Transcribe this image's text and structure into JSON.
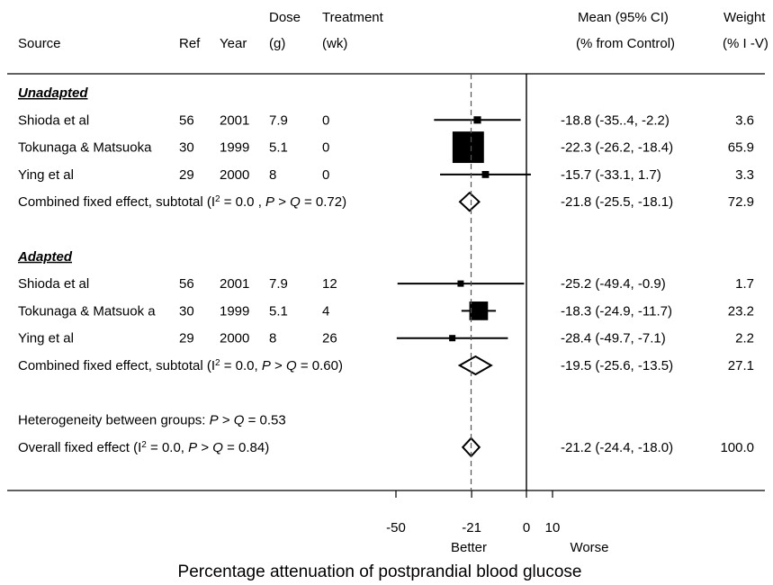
{
  "chart_data": {
    "type": "forest",
    "title": "",
    "xlabel": "Percentage attenuation of postprandial blood glucose",
    "direction_labels": {
      "left": "Better",
      "right": "Worse"
    },
    "x_ticks": [
      "-50",
      "-21",
      "0",
      "10"
    ],
    "x_tick_values": [
      -50,
      -21,
      0,
      10
    ],
    "xlim": [
      -60,
      12
    ],
    "reference_line": {
      "x": 0,
      "style": "solid"
    },
    "pooled_line": {
      "x": -21.2,
      "style": "dashed"
    },
    "headers": {
      "source": "Source",
      "ref": "Ref",
      "year": "Year",
      "dose_top": "Dose",
      "dose_bottom": "(g)",
      "treatment_top": "Treatment",
      "treatment_bottom": "(wk)",
      "mean_top": "Mean (95% CI)",
      "mean_bottom": "(% from Control)",
      "weight_top": "Weight",
      "weight_bottom": "(% I -V)"
    },
    "rows": [
      {
        "kind": "group",
        "label": "Unadapted"
      },
      {
        "kind": "study",
        "source": "Shioda et al",
        "ref": "56",
        "year": "2001",
        "dose": "7.9",
        "treatment": "0",
        "mean": -18.8,
        "lo": -35.4,
        "hi": -2.2,
        "ci_text": "-18.8  (-35..4,   -2.2)",
        "weight": 3.6,
        "weight_text": "3.6"
      },
      {
        "kind": "study",
        "source": "Tokunaga & Matsuoka",
        "ref": "30",
        "year": "1999",
        "dose": "5.1",
        "treatment": "0",
        "mean": -22.3,
        "lo": -26.2,
        "hi": -18.4,
        "ci_text": "-22.3  (-26.2, -18.4)",
        "weight": 65.9,
        "weight_text": "65.9"
      },
      {
        "kind": "study",
        "source": "Ying et al",
        "ref": "29",
        "year": "2000",
        "dose": "8",
        "treatment": "0",
        "mean": -15.7,
        "lo": -33.1,
        "hi": 1.7,
        "ci_text": "-15.7  (-33.1,    1.7)",
        "weight": 3.3,
        "weight_text": "3.3"
      },
      {
        "kind": "pooled",
        "prefix": "Combined fixed effect, subtotal  (I",
        "stat": "  = 0.0 , ",
        "p": "P",
        "gtq": " > ",
        "q": "Q",
        "pval": " = 0.72)",
        "mean": -21.8,
        "lo": -25.5,
        "hi": -18.1,
        "ci_text": "-21.8  (-25.5, -18.1)",
        "weight": 72.9,
        "weight_text": "72.9"
      },
      {
        "kind": "spacer"
      },
      {
        "kind": "group",
        "label": "Adapted"
      },
      {
        "kind": "study",
        "source": "Shioda et al",
        "ref": "56",
        "year": "2001",
        "dose": "7.9",
        "treatment": "12",
        "mean": -25.2,
        "lo": -49.4,
        "hi": -0.9,
        "ci_text": "-25.2  (-49.4,   -0.9)",
        "weight": 1.7,
        "weight_text": "1.7"
      },
      {
        "kind": "study",
        "source": "Tokunaga & Matsuok a",
        "ref": "30",
        "year": "1999",
        "dose": "5.1",
        "treatment": "4",
        "mean": -18.3,
        "lo": -24.9,
        "hi": -11.7,
        "ci_text": "-18.3  (-24.9, -11.7)",
        "weight": 23.2,
        "weight_text": "23.2"
      },
      {
        "kind": "study",
        "source": "Ying et al",
        "ref": "29",
        "year": "2000",
        "dose": "8",
        "treatment": "26",
        "mean": -28.4,
        "lo": -49.7,
        "hi": -7.1,
        "ci_text": "-28.4  (-49.7,   -7.1)",
        "weight": 2.2,
        "weight_text": "2.2"
      },
      {
        "kind": "pooled",
        "prefix": "Combined fixed effect, subtotal  (I",
        "stat": "  = 0.0, ",
        "p": "P",
        "gtq": " > ",
        "q": "Q",
        "pval": " = 0.60)",
        "mean": -19.5,
        "lo": -25.6,
        "hi": -13.5,
        "ci_text": "-19.5  (-25.6, -13.5)",
        "weight": 27.1,
        "weight_text": "27.1"
      },
      {
        "kind": "spacer"
      },
      {
        "kind": "note",
        "text_pre": "Heterogeneity between groups: ",
        "p": "P",
        "gtq": " > ",
        "q": "Q",
        "text_post": " = 0.53"
      },
      {
        "kind": "pooled",
        "prefix": "Overall  fixed effect (I",
        "stat": " = 0.0, ",
        "p": "P",
        "gtq": " > ",
        "q": "Q",
        "pval": " = 0.84)",
        "mean": -21.2,
        "lo": -24.4,
        "hi": -18.0,
        "ci_text": "-21.2  (-24.4, -18.0)",
        "weight": 100.0,
        "weight_text": "100.0"
      }
    ]
  }
}
